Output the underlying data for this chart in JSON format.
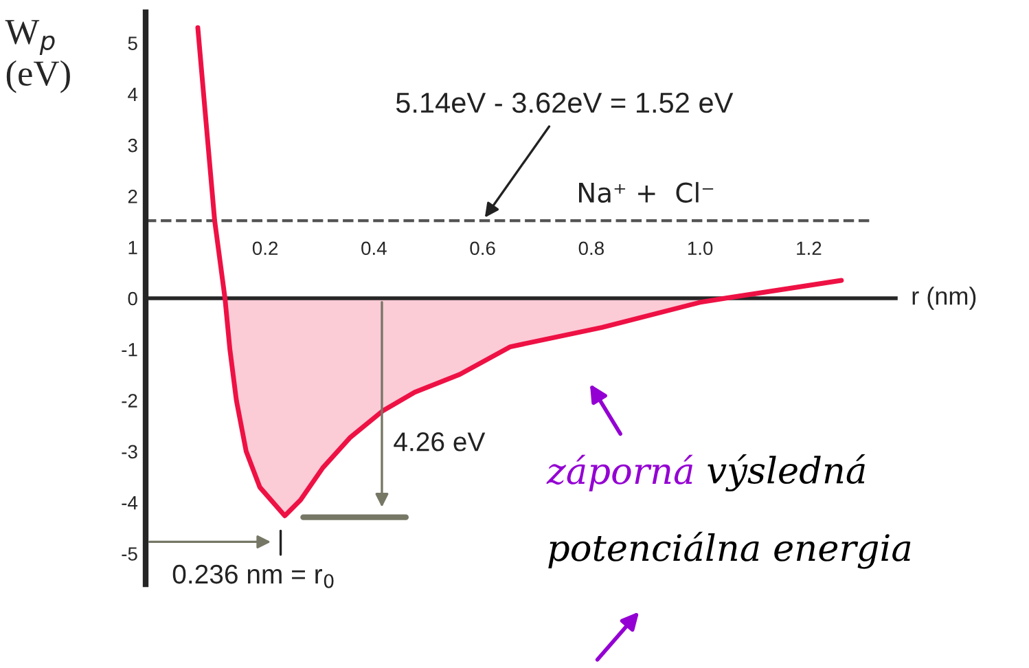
{
  "chart_data": {
    "type": "line",
    "ylabel": "W$_{p}$\n(eV)",
    "xlabel": "r (nm)",
    "x": [
      0.076,
      0.107,
      0.126,
      0.135,
      0.147,
      0.165,
      0.19,
      0.236,
      0.265,
      0.306,
      0.356,
      0.417,
      0.475,
      0.558,
      0.651,
      0.82,
      1.0,
      1.046,
      1.26
    ],
    "series": [
      {
        "type": "area",
        "color": "#ee1144",
        "values": [
          null,
          null,
          0,
          -1,
          -2,
          -3,
          -3.7,
          -4.26,
          -3.95,
          -3.32,
          -2.73,
          -2.2,
          -1.84,
          -1.49,
          -0.95,
          -0.57,
          -0.08,
          0,
          null
        ]
      },
      {
        "color": "#ee1144",
        "values": [
          5.3,
          1.52,
          0,
          -1,
          -2,
          -3,
          -3.7,
          -4.26,
          -3.95,
          -3.32,
          -2.73,
          -2.2,
          -1.84,
          -1.49,
          -0.95,
          -0.57,
          -0.08,
          0,
          0.35
        ]
      }
    ],
    "xlim": [
      -0.02,
      1.36
    ],
    "ylim": [
      -5.6,
      5.6
    ],
    "xticks": [
      0.2,
      0.4,
      0.6,
      0.8,
      {
        "value": 1,
        "label": "1.0"
      },
      1.2
    ],
    "yticks": [
      -5,
      -4,
      -3,
      -2,
      -1,
      0,
      1,
      2,
      3,
      4,
      5
    ],
    "ref_lines": [
      {
        "axis": "y",
        "value": 1.52,
        "label": "Na⁺ +  Cl⁻",
        "color": "#555555",
        "line_style": "dashed"
      }
    ],
    "annotations": [
      {
        "text": "5.14eV - 3.62eV = 1.52 eV",
        "x": 0.6,
        "y": 1.52
      },
      "4.26 eV",
      "0.236 nm = r$_{0}$",
      "záporná",
      "výsledná",
      "potenciálna energia"
    ],
    "grid": false
  }
}
